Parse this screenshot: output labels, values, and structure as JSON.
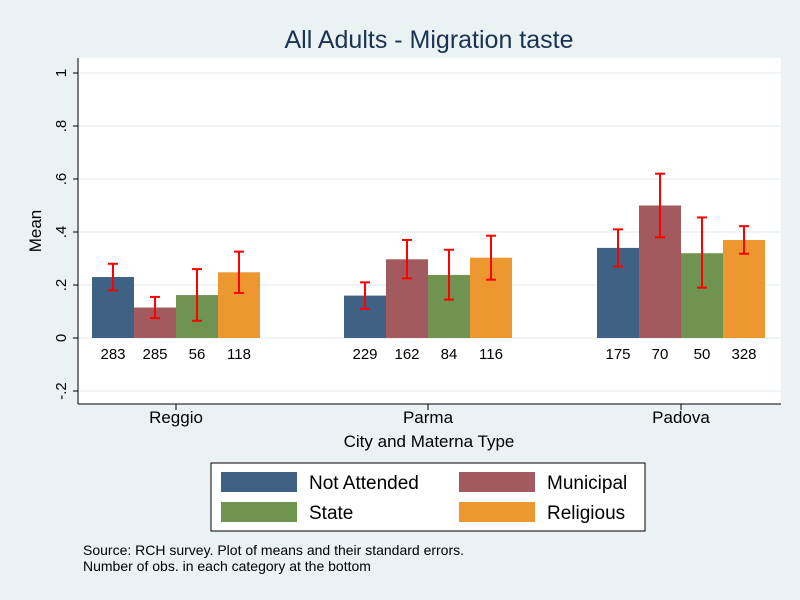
{
  "chart_data": {
    "type": "bar",
    "title": "All Adults - Migration taste",
    "xlabel": "City and Materna Type",
    "ylabel": "Mean",
    "ylim": [
      -0.2,
      1
    ],
    "yticks": [
      -0.2,
      0,
      0.2,
      0.4,
      0.6,
      0.8,
      1
    ],
    "ytick_labels": [
      "-.2",
      "0",
      ".2",
      ".4",
      ".6",
      ".8",
      "1"
    ],
    "grid": true,
    "legend_position": "bottom",
    "categories": [
      "Reggio",
      "Parma",
      "Padova"
    ],
    "series": [
      {
        "name": "Not Attended",
        "color": "#3e6184",
        "values": [
          0.23,
          0.16,
          0.34
        ],
        "lower": [
          0.18,
          0.11,
          0.27
        ],
        "upper": [
          0.28,
          0.21,
          0.41
        ],
        "counts": [
          "283",
          "229",
          "175"
        ]
      },
      {
        "name": "Municipal",
        "color": "#a35a5e",
        "values": [
          0.115,
          0.297,
          0.5
        ],
        "lower": [
          0.075,
          0.225,
          0.38
        ],
        "upper": [
          0.155,
          0.37,
          0.62
        ],
        "counts": [
          "285",
          "162",
          "70"
        ]
      },
      {
        "name": "State",
        "color": "#6f9451",
        "values": [
          0.162,
          0.238,
          0.32
        ],
        "lower": [
          0.065,
          0.145,
          0.19
        ],
        "upper": [
          0.26,
          0.333,
          0.455
        ],
        "counts": [
          "56",
          "84",
          "50"
        ]
      },
      {
        "name": "Religious",
        "color": "#ed9731",
        "values": [
          0.248,
          0.303,
          0.37
        ],
        "lower": [
          0.17,
          0.22,
          0.318
        ],
        "upper": [
          0.326,
          0.386,
          0.422
        ],
        "counts": [
          "118",
          "116",
          "328"
        ]
      }
    ],
    "errorbar_color": "#ff0000"
  },
  "notes": {
    "line1": "Source: RCH survey. Plot of means and their standard errors.",
    "line2": "Number of obs. in each category at the bottom"
  }
}
